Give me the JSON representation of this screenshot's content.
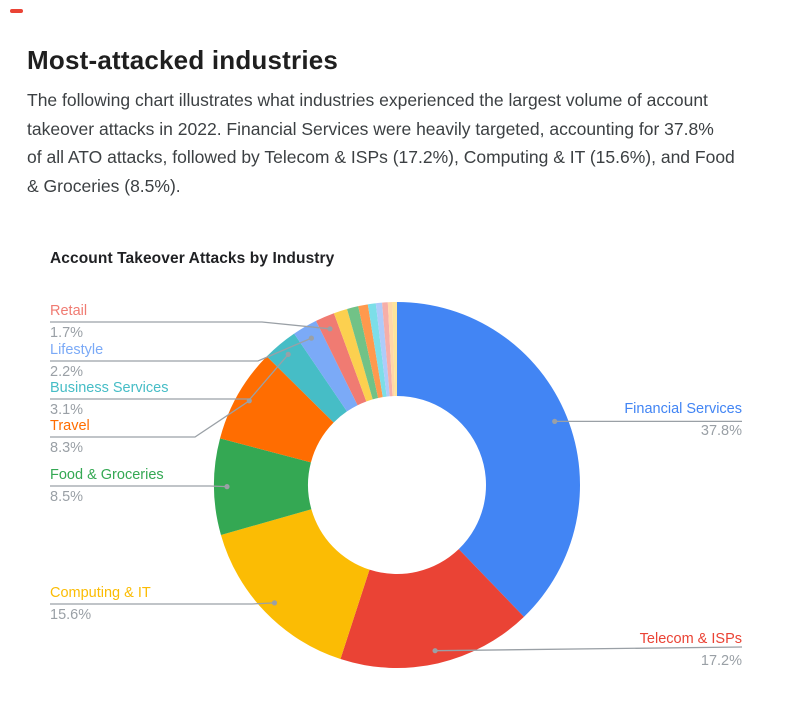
{
  "page": {
    "accent_dash_color": "#EA4335",
    "heading": "Most-attacked industries",
    "intro_lines": [
      "The following chart illustrates what industries experienced the largest volume of account",
      "takeover attacks in 2022. Financial Services were heavily targeted, accounting for 37.8%",
      "of all ATO attacks, followed by Telecom & ISPs (17.2%), Computing & IT (15.6%), and Food",
      "& Groceries (8.5%)."
    ]
  },
  "chart": {
    "title": "Account Takeover Attacks by Industry",
    "leader_line_color": "#9aa0a6",
    "pct_text_color": "#9aa0a6",
    "callouts": [
      {
        "name": "Financial Services",
        "pct": "37.8%",
        "color": "#4285F4"
      },
      {
        "name": "Telecom & ISPs",
        "pct": "17.2%",
        "color": "#EA4335"
      },
      {
        "name": "Computing & IT",
        "pct": "15.6%",
        "color": "#FBBC04"
      },
      {
        "name": "Food & Groceries",
        "pct": "8.5%",
        "color": "#34A853"
      },
      {
        "name": "Travel",
        "pct": "8.3%",
        "color": "#FF6D01"
      },
      {
        "name": "Business Services",
        "pct": "3.1%",
        "color": "#46BDC6"
      },
      {
        "name": "Lifestyle",
        "pct": "2.2%",
        "color": "#7BAAF7"
      },
      {
        "name": "Retail",
        "pct": "1.7%",
        "color": "#F07B72"
      }
    ]
  },
  "chart_data": {
    "type": "pie",
    "subtype": "donut",
    "title": "Account Takeover Attacks by Industry",
    "unit": "percent",
    "start": "12 o'clock",
    "direction": "clockwise",
    "legend_position": "callout-labels",
    "slices": [
      {
        "label": "Financial Services",
        "value": 37.8,
        "color": "#4285F4",
        "labeled": true
      },
      {
        "label": "Telecom & ISPs",
        "value": 17.2,
        "color": "#EA4335",
        "labeled": true
      },
      {
        "label": "Computing & IT",
        "value": 15.6,
        "color": "#FBBC04",
        "labeled": true
      },
      {
        "label": "Food & Groceries",
        "value": 8.5,
        "color": "#34A853",
        "labeled": true
      },
      {
        "label": "Travel",
        "value": 8.3,
        "color": "#FF6D01",
        "labeled": true
      },
      {
        "label": "Business Services",
        "value": 3.1,
        "color": "#46BDC6",
        "labeled": true
      },
      {
        "label": "Lifestyle",
        "value": 2.2,
        "color": "#7BAAF7",
        "labeled": true
      },
      {
        "label": "Retail",
        "value": 1.7,
        "color": "#F07B72",
        "labeled": true
      },
      {
        "label": "Other",
        "value": 1.2,
        "color": "#FCD04F",
        "labeled": false
      },
      {
        "label": "Other",
        "value": 1.0,
        "color": "#71C287",
        "labeled": false
      },
      {
        "label": "Other",
        "value": 0.85,
        "color": "#FF994D",
        "labeled": false
      },
      {
        "label": "Other",
        "value": 0.7,
        "color": "#7CDEE8",
        "labeled": false
      },
      {
        "label": "Other",
        "value": 0.55,
        "color": "#AECBFA",
        "labeled": false
      },
      {
        "label": "Other",
        "value": 0.5,
        "color": "#F6AEA9",
        "labeled": false
      },
      {
        "label": "Other",
        "value": 0.4,
        "color": "#FFD7A8",
        "labeled": false
      },
      {
        "label": "Other",
        "value": 0.4,
        "color": "#FDE49B",
        "labeled": false
      }
    ]
  }
}
